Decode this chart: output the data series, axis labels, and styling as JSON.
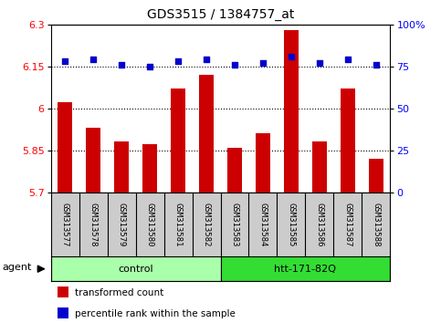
{
  "title": "GDS3515 / 1384757_at",
  "samples": [
    "GSM313577",
    "GSM313578",
    "GSM313579",
    "GSM313580",
    "GSM313581",
    "GSM313582",
    "GSM313583",
    "GSM313584",
    "GSM313585",
    "GSM313586",
    "GSM313587",
    "GSM313588"
  ],
  "transformed_count": [
    6.02,
    5.93,
    5.88,
    5.87,
    6.07,
    6.12,
    5.86,
    5.91,
    6.28,
    5.88,
    6.07,
    5.82
  ],
  "percentile_rank": [
    78,
    79,
    76,
    75,
    78,
    79,
    76,
    77,
    81,
    77,
    79,
    76
  ],
  "bar_color": "#cc0000",
  "dot_color": "#0000cc",
  "ylim_left": [
    5.7,
    6.3
  ],
  "ylim_right": [
    0,
    100
  ],
  "yticks_left": [
    5.7,
    5.85,
    6.0,
    6.15,
    6.3
  ],
  "ytick_labels_left": [
    "5.7",
    "5.85",
    "6",
    "6.15",
    "6.3"
  ],
  "yticks_right": [
    0,
    25,
    50,
    75,
    100
  ],
  "ytick_labels_right": [
    "0",
    "25",
    "50",
    "75",
    "100%"
  ],
  "hlines": [
    5.85,
    6.0,
    6.15
  ],
  "groups": [
    {
      "label": "control",
      "indices": [
        0,
        1,
        2,
        3,
        4,
        5
      ],
      "color": "#aaffaa"
    },
    {
      "label": "htt-171-82Q",
      "indices": [
        6,
        7,
        8,
        9,
        10,
        11
      ],
      "color": "#33dd33"
    }
  ],
  "agent_label": "agent",
  "legend_items": [
    {
      "label": "transformed count",
      "color": "#cc0000"
    },
    {
      "label": "percentile rank within the sample",
      "color": "#0000cc"
    }
  ],
  "bar_width": 0.5,
  "background_color": "#ffffff",
  "plot_bg_color": "#ffffff",
  "label_box_color": "#cccccc"
}
